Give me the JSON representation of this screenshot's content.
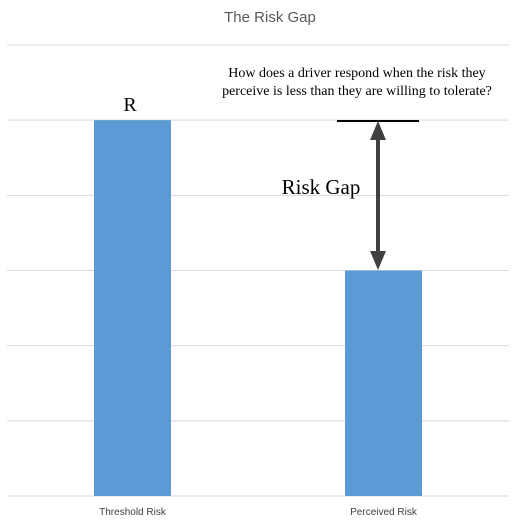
{
  "chart_data": {
    "type": "bar",
    "title": "The Risk Gap",
    "categories": [
      "Threshold Risk",
      "Perceived Risk"
    ],
    "values": [
      5,
      3
    ],
    "ylim": [
      0,
      6
    ],
    "grid": true,
    "legend": "none",
    "xlabel": "",
    "ylabel": "",
    "colors": {
      "bar": "#5b9bd5",
      "grid": "#d9d9d9",
      "arrow": "#404040"
    },
    "annotations": {
      "bar_label": "R",
      "question_line1": "How does a driver respond when the risk they",
      "question_line2": "perceive is less than they are willing to tolerate?",
      "gap_label": "Risk Gap"
    }
  }
}
